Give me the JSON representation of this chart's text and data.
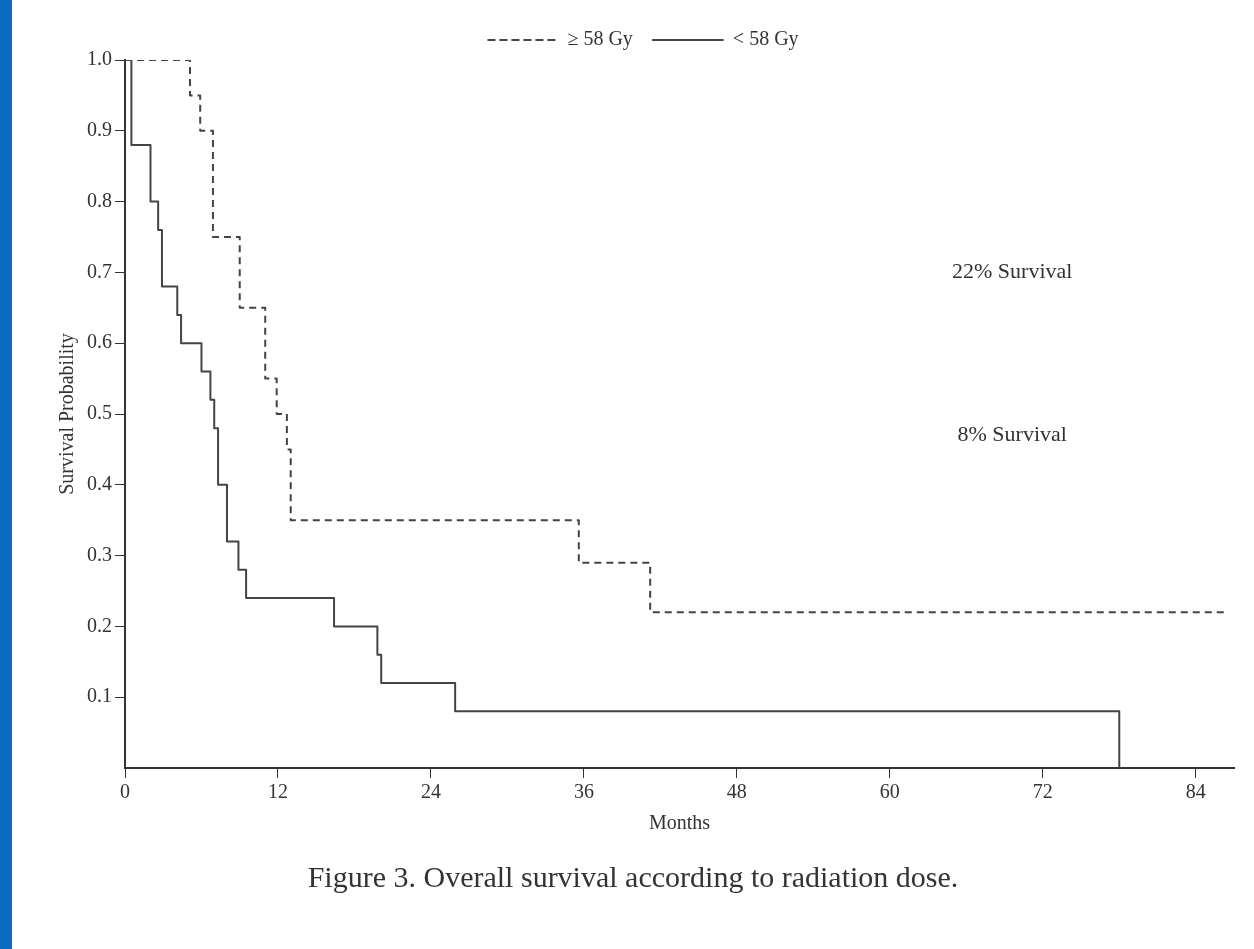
{
  "chart_data": {
    "type": "step",
    "xlabel": "Months",
    "ylabel": "Survival Probability",
    "xlim": [
      0,
      87
    ],
    "xticks": [
      0,
      12,
      24,
      36,
      48,
      60,
      72,
      84
    ],
    "ylim": [
      0,
      1
    ],
    "yticks": [
      0.1,
      0.2,
      0.3,
      0.4,
      0.5,
      0.6,
      0.7,
      0.8,
      0.9,
      {
        "value": 1,
        "label": "1.0"
      }
    ],
    "grid": false,
    "legend": "top",
    "series": [
      {
        "name": "≥ 58 Gy",
        "color": "#444444",
        "line_style": "dashed",
        "x": [
          0,
          5.1,
          5.9,
          6.9,
          9.0,
          11.0,
          11.9,
          12.7,
          13.0,
          35.6,
          41.2,
          86.5
        ],
        "values": [
          1.0,
          0.95,
          0.9,
          0.75,
          0.65,
          0.55,
          0.5,
          0.45,
          0.35,
          0.29,
          0.22,
          0.22
        ]
      },
      {
        "name": "< 58 Gy",
        "color": "#444444",
        "line_style": "solid",
        "x": [
          0,
          0.5,
          2.0,
          2.6,
          2.9,
          4.1,
          4.4,
          6.0,
          6.7,
          7.0,
          7.3,
          8.0,
          8.9,
          9.5,
          16.4,
          19.8,
          20.1,
          25.9,
          78
        ],
        "values": [
          1.0,
          0.88,
          0.8,
          0.76,
          0.68,
          0.64,
          0.6,
          0.56,
          0.52,
          0.48,
          0.4,
          0.32,
          0.28,
          0.24,
          0.2,
          0.16,
          0.12,
          0.08,
          0.0
        ]
      }
    ],
    "annotations": [
      "22% Survival",
      "8% Survival",
      "Figure 3. Overall survival according to radiation dose."
    ]
  }
}
